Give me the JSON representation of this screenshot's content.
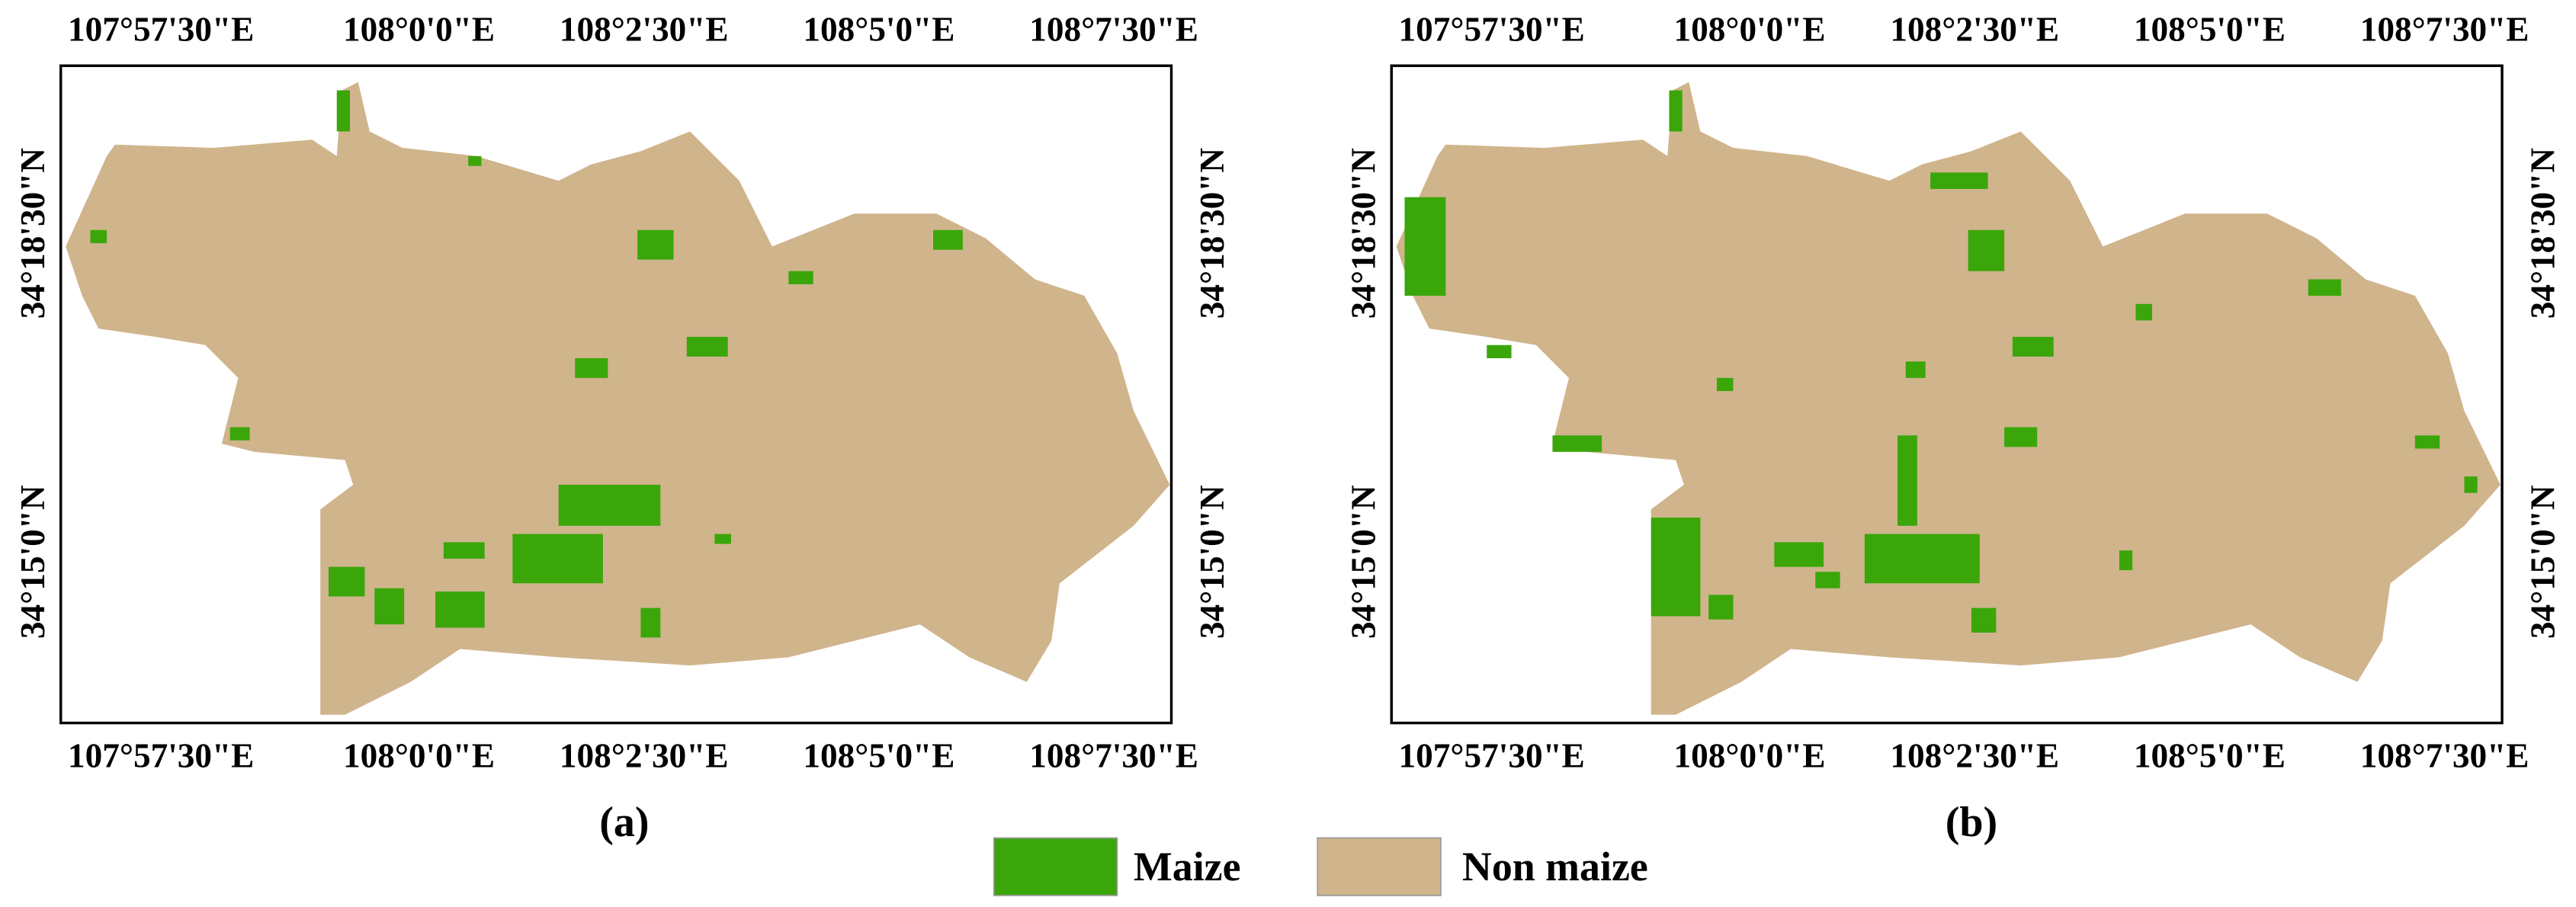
{
  "panels": [
    {
      "label": "(a)",
      "top_longitudes": [
        "107°57'30\"E",
        "108°0'0\"E",
        "108°2'30\"E",
        "108°5'0\"E",
        "108°7'30\"E"
      ],
      "bottom_longitudes": [
        "107°57'30\"E",
        "108°0'0\"E",
        "108°2'30\"E",
        "108°5'0\"E",
        "108°7'30\"E"
      ],
      "left_latitudes": [
        "34°18'30\"N",
        "34°15'0\"N"
      ],
      "right_latitudes": [
        "34°18'30\"N",
        "34°15'0\"N"
      ]
    },
    {
      "label": "(b)",
      "top_longitudes": [
        "107°57'30\"E",
        "108°0'0\"E",
        "108°2'30\"E",
        "108°5'0\"E",
        "108°7'30\"E"
      ],
      "bottom_longitudes": [
        "107°57'30\"E",
        "108°0'0\"E",
        "108°2'30\"E",
        "108°5'0\"E",
        "108°7'30\"E"
      ],
      "left_latitudes": [
        "34°18'30\"N",
        "34°15'0\"N"
      ],
      "right_latitudes": [
        "34°18'30\"N",
        "34°15'0\"N"
      ]
    }
  ],
  "legend": [
    {
      "label": "Maize",
      "color": "#3aa60a"
    },
    {
      "label": "Non maize",
      "color": "#d0b48c"
    }
  ]
}
